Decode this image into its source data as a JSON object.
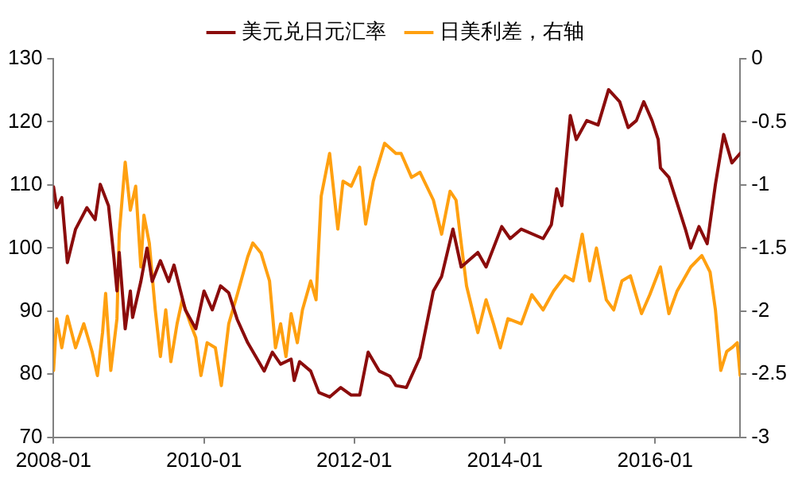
{
  "chart_data": {
    "type": "line",
    "xlim": [
      "2008-01-01",
      "2017-02-17"
    ],
    "xticks": [
      "2008-01",
      "2010-01",
      "2012-01",
      "2014-01",
      "2016-01"
    ],
    "ylim": [
      70,
      130
    ],
    "yticks": [
      70,
      80,
      90,
      100,
      110,
      120,
      130
    ],
    "y2lim": [
      -3,
      0
    ],
    "y2ticks": [
      -3,
      -2.5,
      -2,
      -1.5,
      -1,
      -0.5,
      0
    ],
    "grid": false,
    "legend": "top",
    "marker": "none",
    "line_style": "solid",
    "series": [
      {
        "name": "美元兑日元汇率",
        "color": "#8b0c0c",
        "x": [
          "2008-01-01",
          "2008-01-16",
          "2008-02-10",
          "2008-03-08",
          "2008-04-17",
          "2008-06-11",
          "2008-07-21",
          "2008-08-15",
          "2008-09-24",
          "2008-10-20",
          "2008-11-04",
          "2008-11-15",
          "2008-12-14",
          "2009-01-08",
          "2009-01-19",
          "2009-02-28",
          "2009-03-30",
          "2009-04-24",
          "2009-06-03",
          "2009-07-13",
          "2009-08-08",
          "2009-10-02",
          "2009-11-22",
          "2010-01-01",
          "2010-02-10",
          "2010-03-22",
          "2010-05-01",
          "2010-06-11",
          "2010-08-01",
          "2010-10-20",
          "2010-11-29",
          "2011-01-08",
          "2011-02-28",
          "2011-03-15",
          "2011-04-10",
          "2011-06-03",
          "2011-07-13",
          "2011-09-03",
          "2011-10-27",
          "2011-12-17",
          "2012-01-27",
          "2012-03-08",
          "2012-05-01",
          "2012-06-22",
          "2012-07-21",
          "2012-09-10",
          "2012-11-15",
          "2013-01-19",
          "2013-02-28",
          "2013-04-24",
          "2013-06-03",
          "2013-08-23",
          "2013-10-02",
          "2013-12-17",
          "2014-01-27",
          "2014-03-22",
          "2014-07-06",
          "2014-08-15",
          "2014-09-10",
          "2014-10-05",
          "2014-11-15",
          "2014-12-14",
          "2015-02-03",
          "2015-03-30",
          "2015-05-20",
          "2015-07-13",
          "2015-08-23",
          "2015-10-02",
          "2015-11-07",
          "2015-12-17",
          "2016-01-16",
          "2016-01-27",
          "2016-03-08",
          "2016-04-17",
          "2016-05-27",
          "2016-06-22",
          "2016-08-01",
          "2016-09-10",
          "2016-10-20",
          "2016-11-29",
          "2017-01-08",
          "2017-02-17"
        ],
        "values": [
          109.7,
          106.4,
          108,
          97.7,
          103,
          106.4,
          104.5,
          110.1,
          106.7,
          98.5,
          93.2,
          99.3,
          87.2,
          93.2,
          89,
          94.7,
          100,
          94.7,
          98,
          94.7,
          97.3,
          90.2,
          87.2,
          93.2,
          90.2,
          94,
          92.9,
          88.7,
          85,
          80.5,
          83.5,
          81.6,
          82.4,
          79,
          82,
          80.5,
          77.1,
          76.4,
          77.9,
          76.7,
          76.7,
          83.5,
          80.5,
          79.7,
          78.2,
          77.9,
          82.7,
          93.2,
          95.5,
          103,
          97,
          99.3,
          97,
          103.4,
          101.5,
          103,
          101.5,
          103.7,
          109.4,
          106.7,
          121,
          117.2,
          120.2,
          119.5,
          125.1,
          123.2,
          119.1,
          120.2,
          123.2,
          120.2,
          117.2,
          112.7,
          111.2,
          107.1,
          103,
          100,
          103.4,
          100.7,
          110.1,
          118,
          113.5,
          115
        ]
      },
      {
        "name": "日美利差，右轴",
        "color": "#ffa010",
        "axis": "y2",
        "x": [
          "2008-01-01",
          "2008-01-16",
          "2008-02-10",
          "2008-03-08",
          "2008-04-17",
          "2008-05-27",
          "2008-07-06",
          "2008-08-01",
          "2008-08-26",
          "2008-09-10",
          "2008-10-05",
          "2008-11-04",
          "2008-11-15",
          "2008-12-14",
          "2009-01-08",
          "2009-02-03",
          "2009-02-28",
          "2009-03-15",
          "2009-04-10",
          "2009-05-09",
          "2009-06-03",
          "2009-06-29",
          "2009-07-24",
          "2009-08-23",
          "2009-09-17",
          "2009-10-27",
          "2009-11-22",
          "2009-12-17",
          "2010-01-16",
          "2010-02-25",
          "2010-03-26",
          "2010-05-01",
          "2010-06-11",
          "2010-08-01",
          "2010-08-26",
          "2010-10-05",
          "2010-11-15",
          "2010-12-14",
          "2011-01-08",
          "2011-02-03",
          "2011-02-28",
          "2011-03-30",
          "2011-04-24",
          "2011-06-03",
          "2011-06-29",
          "2011-07-24",
          "2011-09-03",
          "2011-10-13",
          "2011-11-07",
          "2011-12-17",
          "2012-01-27",
          "2012-02-25",
          "2012-04-02",
          "2012-05-27",
          "2012-07-21",
          "2012-08-15",
          "2012-10-05",
          "2012-11-15",
          "2013-01-19",
          "2013-02-28",
          "2013-04-10",
          "2013-05-09",
          "2013-06-03",
          "2013-06-29",
          "2013-08-23",
          "2013-10-02",
          "2013-11-07",
          "2013-12-10",
          "2014-01-16",
          "2014-03-22",
          "2014-05-12",
          "2014-07-06",
          "2014-08-26",
          "2014-10-20",
          "2014-11-29",
          "2015-01-12",
          "2015-02-17",
          "2015-03-22",
          "2015-05-09",
          "2015-06-14",
          "2015-07-24",
          "2015-09-03",
          "2015-10-27",
          "2015-12-06",
          "2016-01-27",
          "2016-03-08",
          "2016-04-17",
          "2016-06-22",
          "2016-08-15",
          "2016-09-24",
          "2016-10-20",
          "2016-11-15",
          "2016-12-14",
          "2017-01-08",
          "2017-02-03",
          "2017-02-17"
        ],
        "values": [
          -2.47,
          -2.06,
          -2.29,
          -2.04,
          -2.29,
          -2.1,
          -2.32,
          -2.51,
          -2.17,
          -1.86,
          -2.47,
          -2.06,
          -1.39,
          -0.82,
          -1.2,
          -1.01,
          -1.65,
          -1.24,
          -1.46,
          -1.99,
          -2.36,
          -1.99,
          -2.4,
          -2.1,
          -1.91,
          -2.1,
          -2.21,
          -2.51,
          -2.25,
          -2.29,
          -2.59,
          -2.1,
          -1.87,
          -1.57,
          -1.46,
          -1.54,
          -1.76,
          -2.29,
          -2.1,
          -2.36,
          -2.02,
          -2.25,
          -1.99,
          -1.76,
          -1.91,
          -1.09,
          -0.75,
          -1.35,
          -0.97,
          -1.01,
          -0.86,
          -1.31,
          -0.97,
          -0.67,
          -0.75,
          -0.75,
          -0.94,
          -0.9,
          -1.12,
          -1.39,
          -1.05,
          -1.12,
          -1.46,
          -1.8,
          -2.17,
          -1.91,
          -2.1,
          -2.29,
          -2.06,
          -2.1,
          -1.87,
          -1.99,
          -1.84,
          -1.72,
          -1.76,
          -1.39,
          -1.76,
          -1.5,
          -1.91,
          -1.99,
          -1.76,
          -1.72,
          -2.02,
          -1.87,
          -1.65,
          -2.02,
          -1.84,
          -1.65,
          -1.56,
          -1.69,
          -1.99,
          -2.47,
          -2.32,
          -2.29,
          -2.25,
          -2.51
        ]
      }
    ]
  }
}
